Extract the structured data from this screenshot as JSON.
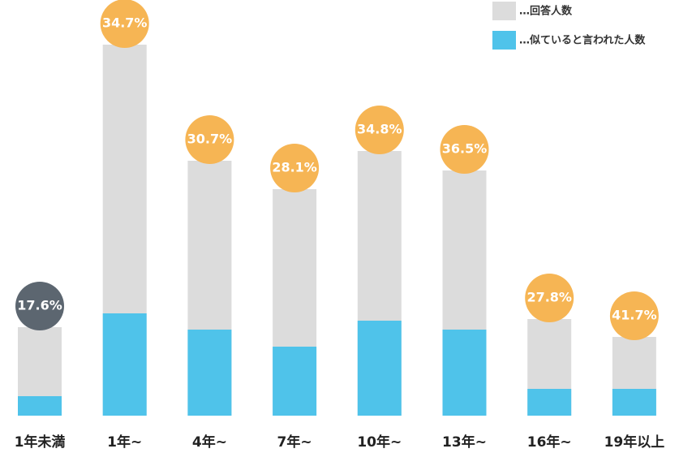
{
  "chart_data": {
    "type": "bar",
    "categories": [
      "1年未満",
      "1年~",
      "4年~",
      "7年~",
      "10年~",
      "13年~",
      "16年~",
      "19年以上"
    ],
    "series": [
      {
        "name": "…回答人数",
        "color": "#dcdcdc",
        "values": [
          109,
          457,
          314,
          279,
          326,
          302,
          119,
          97
        ]
      },
      {
        "name": "…似ていると言われた人数",
        "color": "#4fc3ea",
        "values": [
          24,
          126,
          106,
          85,
          117,
          106,
          33,
          33
        ]
      }
    ],
    "rates": {
      "values": [
        17.6,
        34.7,
        30.7,
        28.1,
        34.8,
        36.5,
        27.8,
        41.7
      ],
      "value_labels": [
        "17.6%",
        "34.7%",
        "30.7%",
        "28.1%",
        "34.8%",
        "36.5%",
        "27.8%",
        "41.7%"
      ],
      "colors": [
        "#5c6670",
        "#f6b554",
        "#f6b554",
        "#f6b554",
        "#f6b554",
        "#f6b554",
        "#f6b554",
        "#f6b554"
      ]
    },
    "ylim": [
      0,
      480
    ]
  }
}
